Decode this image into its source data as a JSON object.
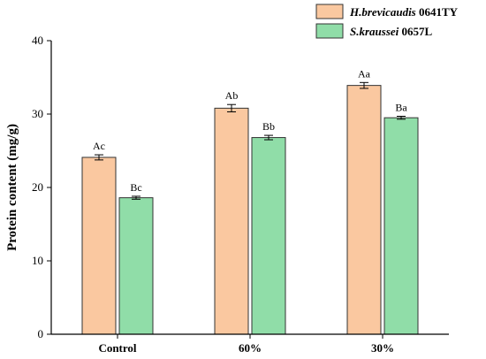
{
  "chart_data": {
    "type": "bar",
    "categories": [
      "Control",
      "60%",
      "30%"
    ],
    "series": [
      {
        "name_italic": "H.brevicaudis",
        "name_rest": " 0641TY",
        "values": [
          24.1,
          30.8,
          33.9
        ],
        "errors": [
          0.35,
          0.5,
          0.4
        ],
        "labels": [
          "Ac",
          "Ab",
          "Aa"
        ],
        "color": "#FAC8A0",
        "edge": "#333333"
      },
      {
        "name_italic": "S.kraussei",
        "name_rest": " 0657L",
        "values": [
          18.6,
          26.8,
          29.5
        ],
        "errors": [
          0.2,
          0.3,
          0.2
        ],
        "labels": [
          "Bc",
          "Bb",
          "Ba"
        ],
        "color": "#90DDA8",
        "edge": "#333333"
      }
    ],
    "xlabel": "",
    "ylabel": "Protein content (mg/g)",
    "ylim": [
      0,
      40
    ],
    "yticks": [
      "0",
      "10",
      "20",
      "30",
      "40"
    ],
    "grid": false,
    "legend": "top-right"
  }
}
